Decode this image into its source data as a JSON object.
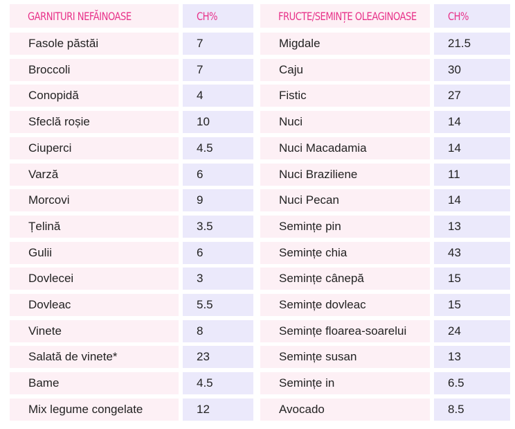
{
  "tables": [
    {
      "header": [
        "GARNITURI NEFĂINOASE",
        "CH%"
      ],
      "rows": [
        [
          "Fasole păstăi",
          7
        ],
        [
          "Broccoli",
          7
        ],
        [
          "Conopidă",
          4
        ],
        [
          "Sfeclă roșie",
          10
        ],
        [
          "Ciuperci",
          4.5
        ],
        [
          "Varză",
          6
        ],
        [
          "Morcovi",
          9
        ],
        [
          "Țelină",
          3.5
        ],
        [
          "Gulii",
          6
        ],
        [
          "Dovlecei",
          3
        ],
        [
          "Dovleac",
          5.5
        ],
        [
          "Vinete",
          8
        ],
        [
          "Salată de vinete*",
          23
        ],
        [
          "Bame",
          4.5
        ],
        [
          "Mix legume congelate",
          12
        ]
      ]
    },
    {
      "header": [
        "FRUCTE/SEMINȚE OLEAGINOASE",
        "CH%"
      ],
      "rows": [
        [
          "Migdale",
          21.5
        ],
        [
          "Caju",
          30
        ],
        [
          "Fistic",
          27
        ],
        [
          "Nuci",
          14
        ],
        [
          "Nuci Macadamia",
          14
        ],
        [
          "Nuci Braziliene",
          11
        ],
        [
          "Nuci Pecan",
          14
        ],
        [
          "Semințe pin",
          13
        ],
        [
          "Semințe chia",
          43
        ],
        [
          "Semințe cânepă",
          15
        ],
        [
          "Semințe dovleac",
          15
        ],
        [
          "Semințe floarea-soarelui",
          24
        ],
        [
          "Semințe susan",
          13
        ],
        [
          "Semințe in",
          6.5
        ],
        [
          "Avocado",
          8.5
        ]
      ]
    }
  ]
}
